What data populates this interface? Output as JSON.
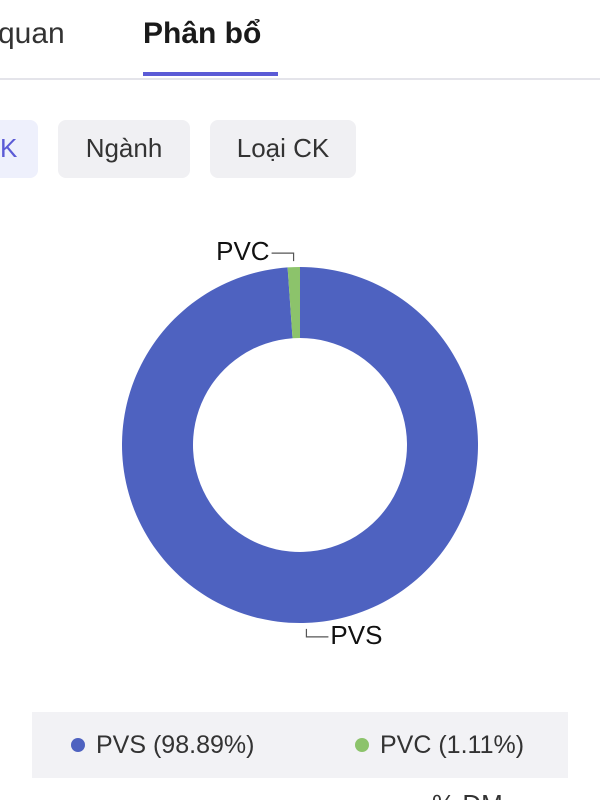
{
  "tabs": [
    "quan",
    "Phân bổ"
  ],
  "chips": [
    "K",
    "Ngành",
    "Loại CK"
  ],
  "chart_data": {
    "type": "donut",
    "categories": [
      "PVS",
      "PVC"
    ],
    "values": [
      98.89,
      1.11
    ],
    "value_labels": [
      "(98.89%)",
      "(1.11%)"
    ],
    "colors": [
      "#4e62c0",
      "#8cc36b"
    ]
  },
  "footer_text": "% DM"
}
